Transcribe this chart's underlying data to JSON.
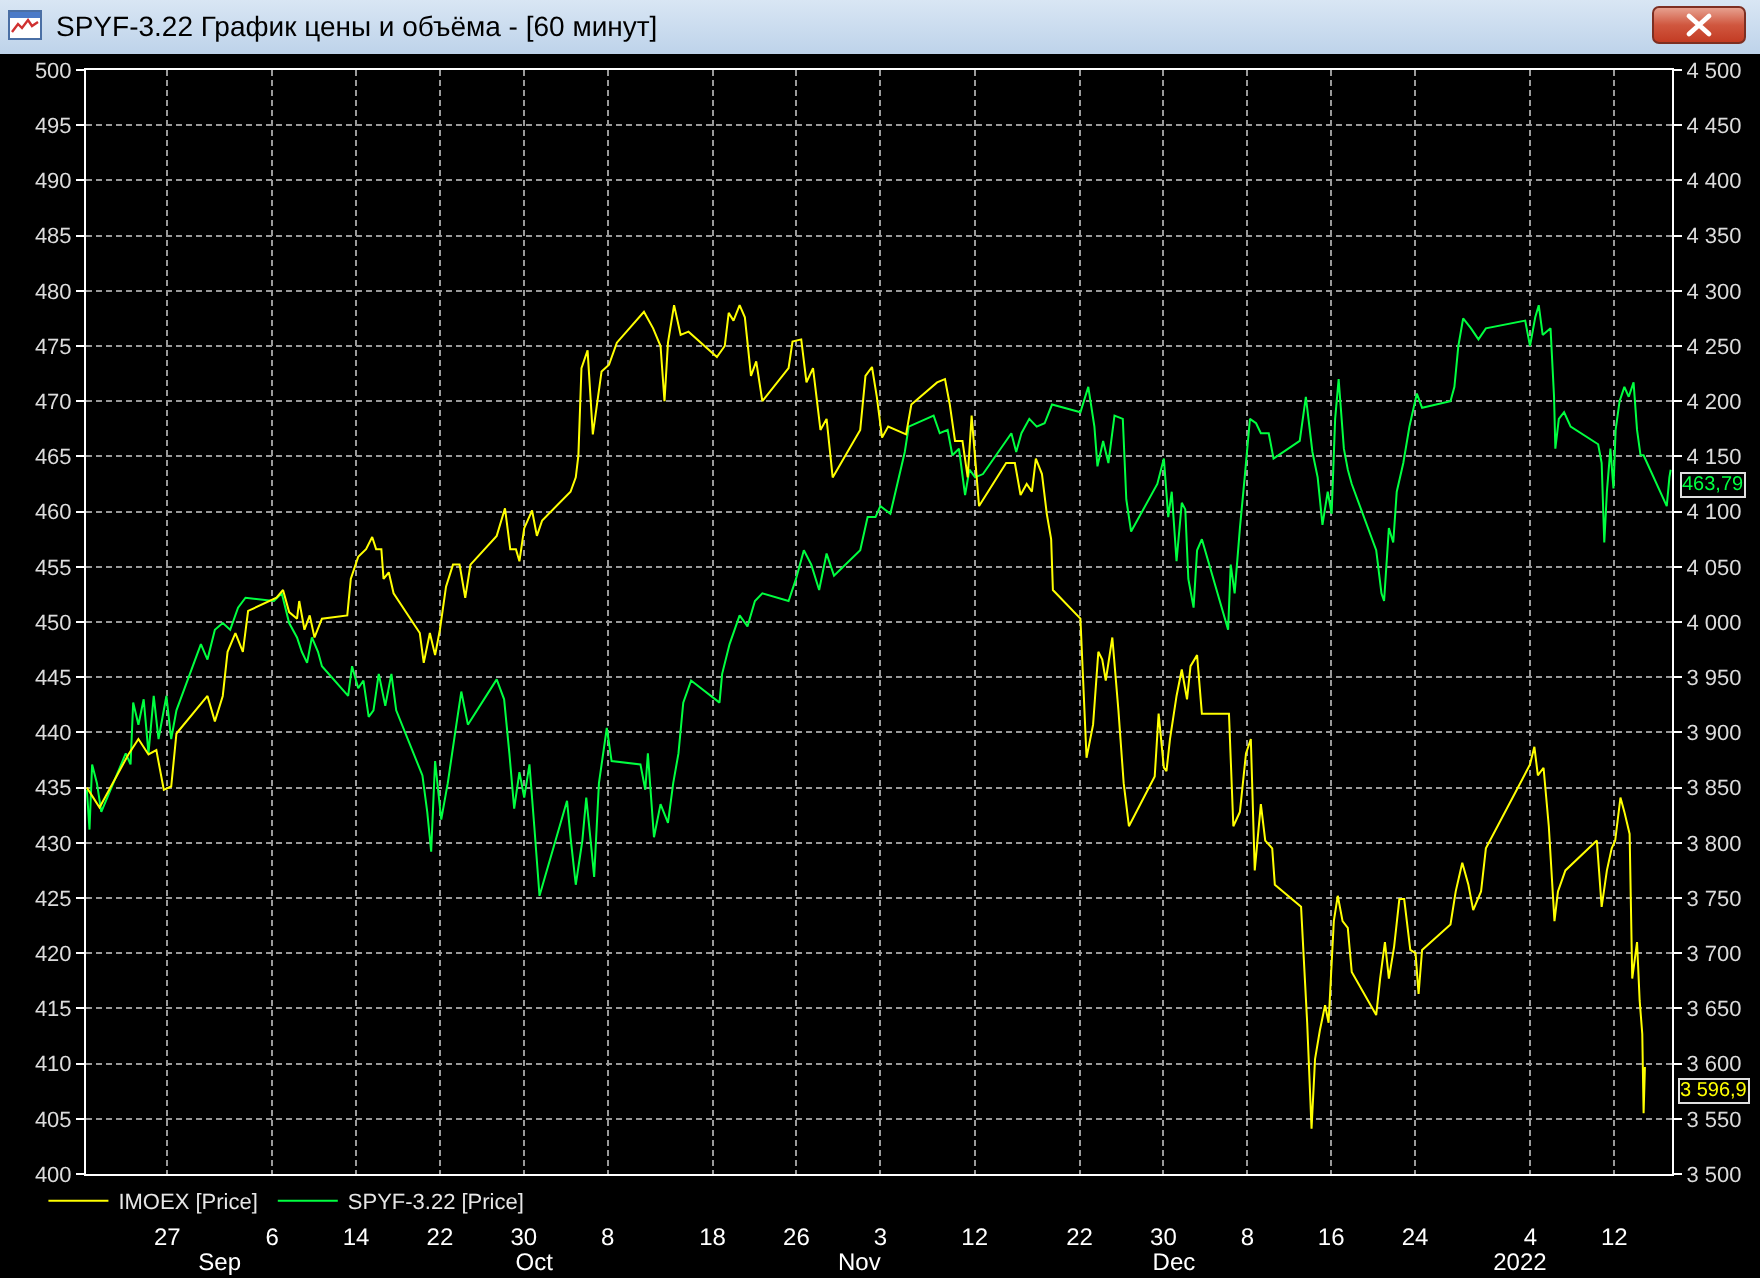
{
  "chart_data": {
    "type": "line",
    "title": "SPYF-3.22 График цены и объёма - [60 минут]",
    "series": [
      {
        "name": "IMOEX [Price]",
        "color": "#ffff00",
        "axis": "y2",
        "x": [
          "2021-08-19T08:00",
          "2021-08-20T13:00",
          "2021-08-23T07:00",
          "2021-08-24T06:00",
          "2021-08-25T05:00",
          "2021-08-25T23:00",
          "2021-08-26T16:00",
          "2021-08-27T09:00",
          "2021-08-27T21:00",
          "2021-08-30T20:00",
          "2021-08-31T13:00",
          "2021-09-01T07:00",
          "2021-09-01T18:00",
          "2021-09-02T12:00",
          "2021-09-03T05:00",
          "2021-09-03T17:00",
          "2021-09-06T10:00",
          "2021-09-07T01:00",
          "2021-09-07T15:00",
          "2021-09-08T09:00",
          "2021-09-08T14:00",
          "2021-09-09T02:00",
          "2021-09-09T14:00",
          "2021-09-10T01:00",
          "2021-09-10T18:00",
          "2021-09-13T04:00",
          "2021-09-13T12:00",
          "2021-09-14T05:00",
          "2021-09-14T23:00",
          "2021-09-15T13:00",
          "2021-09-15T22:00",
          "2021-09-16T10:00",
          "2021-09-16T15:00",
          "2021-09-17T03:00",
          "2021-09-17T14:00",
          "2021-09-20T02:00",
          "2021-09-20T11:00",
          "2021-09-21T01:00",
          "2021-09-21T13:00",
          "2021-09-22T00:00",
          "2021-09-22T14:00",
          "2021-09-23T06:00",
          "2021-09-23T21:00",
          "2021-09-24T10:00",
          "2021-09-24T22:00",
          "2021-09-27T10:00",
          "2021-09-28T05:00",
          "2021-09-28T17:00",
          "2021-09-29T06:00",
          "2021-09-29T14:00",
          "2021-09-30T01:00",
          "2021-09-30T19:00",
          "2021-10-01T06:00",
          "2021-10-01T18:00",
          "2021-10-04T11:00",
          "2021-10-04T23:00",
          "2021-10-05T05:00",
          "2021-10-05T12:00",
          "2021-10-06T02:00",
          "2021-10-06T14:00",
          "2021-10-07T10:00",
          "2021-10-08T03:00",
          "2021-10-08T21:00",
          "2021-10-11T11:00",
          "2021-10-12T08:00",
          "2021-10-13T01:00",
          "2021-10-13T10:00",
          "2021-10-13T18:00",
          "2021-10-14T08:00",
          "2021-10-14T23:00",
          "2021-10-15T17:00",
          "2021-10-18T10:00",
          "2021-10-19T04:00",
          "2021-10-19T13:00",
          "2021-10-20T00:00",
          "2021-10-20T14:00",
          "2021-10-21T02:00",
          "2021-10-21T16:00",
          "2021-10-22T04:00",
          "2021-10-22T18:00",
          "2021-10-25T06:00",
          "2021-10-25T15:00",
          "2021-10-26T11:00",
          "2021-10-26T23:00",
          "2021-10-27T14:00",
          "2021-10-28T07:00",
          "2021-10-28T21:00",
          "2021-10-29T11:00",
          "2021-11-01T02:00",
          "2021-11-01T14:00",
          "2021-11-02T05:00",
          "2021-11-02T16:00",
          "2021-11-03T04:00",
          "2021-11-03T18:00",
          "2021-11-05T11:00",
          "2021-11-05T23:00",
          "2021-11-08T10:00",
          "2021-11-09T04:00",
          "2021-11-09T15:00",
          "2021-11-10T03:00",
          "2021-11-10T20:00",
          "2021-11-11T08:00",
          "2021-11-11T17:00",
          "2021-11-12T10:00",
          "2021-11-15T00:00",
          "2021-11-15T20:00",
          "2021-11-16T09:00",
          "2021-11-16T23:00",
          "2021-11-17T11:00",
          "2021-11-17T20:00",
          "2021-11-18T10:00",
          "2021-11-18T21:00",
          "2021-11-19T07:00",
          "2021-11-19T11:00",
          "2021-11-22T02:00",
          "2021-11-22T16:00",
          "2021-11-23T07:00",
          "2021-11-23T19:00",
          "2021-11-24T04:00",
          "2021-11-24T12:00",
          "2021-11-25T03:00",
          "2021-11-25T17:00",
          "2021-11-26T05:00",
          "2021-11-26T17:00",
          "2021-11-29T04:00",
          "2021-11-29T13:00",
          "2021-11-30T01:00",
          "2021-11-30T07:00",
          "2021-11-30T15:00",
          "2021-12-01T06:00",
          "2021-12-01T18:00",
          "2021-12-02T06:00",
          "2021-12-02T14:00",
          "2021-12-03T05:00",
          "2021-12-03T16:00",
          "2021-12-06T06:00",
          "2021-12-06T16:00",
          "2021-12-07T07:00",
          "2021-12-07T21:00",
          "2021-12-08T08:00",
          "2021-12-08T17:00",
          "2021-12-09T07:00",
          "2021-12-09T17:00",
          "2021-12-10T09:00",
          "2021-12-10T15:00",
          "2021-12-13T03:00",
          "2021-12-13T17:00",
          "2021-12-14T03:00",
          "2021-12-14T11:00",
          "2021-12-14T22:00",
          "2021-12-15T10:00",
          "2021-12-15T18:00",
          "2021-12-16T06:00",
          "2021-12-16T15:00",
          "2021-12-17T02:00",
          "2021-12-17T14:00",
          "2021-12-17T23:00",
          "2021-12-20T07:00",
          "2021-12-20T16:00",
          "2021-12-21T03:00",
          "2021-12-21T12:00",
          "2021-12-22T00:00",
          "2021-12-22T12:00",
          "2021-12-22T23:00",
          "2021-12-23T13:00",
          "2021-12-24T01:00",
          "2021-12-24T08:00",
          "2021-12-24T16:00",
          "2021-12-27T09:00",
          "2021-12-27T21:00",
          "2021-12-28T12:00",
          "2021-12-29T02:00",
          "2021-12-29T13:00",
          "2021-12-30T07:00",
          "2021-12-30T18:00",
          "2022-01-03T06:00",
          "2022-01-03T23:00",
          "2022-01-04T09:00",
          "2022-01-04T17:00",
          "2022-01-05T06:00",
          "2022-01-05T18:00",
          "2022-01-06T07:00",
          "2022-01-06T15:00",
          "2022-01-07T08:00",
          "2022-01-10T08:00",
          "2022-01-10T19:00",
          "2022-01-11T07:00",
          "2022-01-11T18:00",
          "2022-01-12T02:00",
          "2022-01-12T14:00",
          "2022-01-12T23:00",
          "2022-01-13T11:00",
          "2022-01-13T17:00",
          "2022-01-14T04:00",
          "2022-01-14T10:00",
          "2022-01-14T16:00",
          "2022-01-14T19:00",
          "2022-01-14T22:00"
        ],
        "values": [
          3850,
          3832,
          3880,
          3894,
          3880,
          3884,
          3848,
          3851,
          3899,
          3933,
          3910,
          3933,
          3973,
          3990,
          3973,
          4010,
          4022,
          4029,
          4009,
          4003,
          4019,
          3993,
          4006,
          3986,
          4003,
          4006,
          4039,
          4059,
          4066,
          4077,
          4066,
          4066,
          4039,
          4045,
          4026,
          3990,
          3963,
          3990,
          3970,
          3993,
          4032,
          4052,
          4052,
          4022,
          4052,
          4078,
          4103,
          4066,
          4066,
          4055,
          4085,
          4101,
          4078,
          4092,
          4118,
          4131,
          4151,
          4230,
          4246,
          4170,
          4227,
          4233,
          4253,
          4281,
          4266,
          4250,
          4200,
          4253,
          4287,
          4260,
          4263,
          4240,
          4250,
          4280,
          4273,
          4287,
          4276,
          4223,
          4236,
          4200,
          4230,
          4254,
          4256,
          4217,
          4230,
          4174,
          4184,
          4131,
          4174,
          4223,
          4231,
          4204,
          4167,
          4177,
          4170,
          4197,
          4217,
          4220,
          4197,
          4164,
          4164,
          4131,
          4187,
          4105,
          4144,
          4144,
          4115,
          4125,
          4118,
          4148,
          4134,
          4098,
          4075,
          4029,
          4003,
          3877,
          3907,
          3973,
          3966,
          3947,
          3986,
          3920,
          3854,
          3815,
          3860,
          3917,
          3868,
          3865,
          3894,
          3933,
          3957,
          3930,
          3960,
          3970,
          3917,
          3917,
          3815,
          3828,
          3881,
          3894,
          3775,
          3835,
          3802,
          3795,
          3762,
          3742,
          3637,
          3541,
          3604,
          3630,
          3653,
          3637,
          3729,
          3752,
          3729,
          3723,
          3683,
          3644,
          3677,
          3710,
          3677,
          3706,
          3749,
          3749,
          3703,
          3700,
          3663,
          3703,
          3726,
          3756,
          3782,
          3762,
          3739,
          3756,
          3795,
          3858,
          3871,
          3887,
          3861,
          3868,
          3815,
          3729,
          3756,
          3775,
          3802,
          3742,
          3775,
          3795,
          3802,
          3841,
          3828,
          3808,
          3677,
          3710,
          3657,
          3627,
          3555,
          3596.9
        ],
        "value_labels": [
          null,
          null,
          null,
          null,
          null,
          null,
          null,
          null,
          null,
          null,
          null,
          null,
          null,
          null,
          null,
          null,
          null,
          null,
          null,
          null,
          null,
          null,
          null,
          null,
          null,
          null,
          null,
          null,
          null,
          null,
          null,
          null,
          null,
          null,
          null,
          null,
          null,
          null,
          null,
          null,
          null,
          null,
          null,
          null,
          null,
          null,
          null,
          null,
          null,
          null,
          null,
          null,
          null,
          null,
          null,
          null,
          null,
          null,
          null,
          null,
          null,
          null,
          null,
          null,
          null,
          null,
          null,
          null,
          null,
          null,
          null,
          null,
          null,
          null,
          null,
          null,
          null,
          null,
          null,
          null,
          null,
          null,
          null,
          null,
          null,
          null,
          null,
          null,
          null,
          null,
          null,
          null,
          null,
          null,
          null,
          null,
          null,
          null,
          null,
          null,
          null,
          null,
          null,
          null,
          null,
          null,
          null,
          null,
          null,
          null,
          null,
          null,
          null,
          null,
          null,
          null,
          null,
          null,
          null,
          null,
          null,
          null,
          null,
          null,
          null,
          null,
          null,
          null,
          null,
          null,
          null,
          null,
          null,
          null,
          null,
          null,
          null,
          null,
          null,
          null,
          null,
          null,
          null,
          null,
          null,
          null,
          null,
          null,
          null,
          null,
          null,
          null,
          null,
          null,
          null,
          null,
          null,
          null,
          null,
          null,
          null,
          null,
          null,
          null,
          null,
          null,
          null,
          null,
          null,
          null,
          null,
          null,
          null,
          null,
          null,
          null,
          null,
          null,
          null,
          null,
          null,
          null,
          null,
          null,
          null,
          null,
          null,
          null,
          null,
          null,
          null,
          null,
          null,
          null,
          null,
          null,
          null,
          "3 596,9"
        ]
      },
      {
        "name": "SPYF-3.22 [Price]",
        "color": "#00ff40",
        "axis": "y",
        "x": [
          "2021-08-19T08:00",
          "2021-08-19T14:00",
          "2021-08-19T20:00",
          "2021-08-20T07:00",
          "2021-08-20T17:00",
          "2021-08-23T01:00",
          "2021-08-23T12:00",
          "2021-08-23T18:00",
          "2021-08-24T06:00",
          "2021-08-24T18:00",
          "2021-08-25T05:00",
          "2021-08-25T17:00",
          "2021-08-26T04:00",
          "2021-08-26T22:00",
          "2021-08-27T09:00",
          "2021-08-27T21:00",
          "2021-08-30T05:00",
          "2021-08-30T20:00",
          "2021-08-31T13:00",
          "2021-09-01T07:00",
          "2021-09-02T00:00",
          "2021-09-02T18:00",
          "2021-09-03T11:00",
          "2021-09-06T04:00",
          "2021-09-06T22:00",
          "2021-09-07T15:00",
          "2021-09-08T09:00",
          "2021-09-08T20:00",
          "2021-09-09T08:00",
          "2021-09-09T19:00",
          "2021-09-10T09:00",
          "2021-09-10T18:00",
          "2021-09-13T06:00",
          "2021-09-13T15:00",
          "2021-09-14T05:00",
          "2021-09-14T17:00",
          "2021-09-15T05:00",
          "2021-09-15T16:00",
          "2021-09-16T04:00",
          "2021-09-16T19:00",
          "2021-09-17T09:00",
          "2021-09-17T20:00",
          "2021-09-20T08:00",
          "2021-09-20T19:00",
          "2021-09-21T04:00",
          "2021-09-21T13:00",
          "2021-09-22T03:00",
          "2021-09-22T18:00",
          "2021-09-23T11:00",
          "2021-09-24T01:00",
          "2021-09-24T16:00",
          "2021-09-27T10:00",
          "2021-09-28T03:00",
          "2021-09-28T15:00",
          "2021-09-29T02:00",
          "2021-09-29T14:00",
          "2021-09-30T01:00",
          "2021-09-30T13:00",
          "2021-10-01T00:00",
          "2021-10-01T12:00",
          "2021-10-04T03:00",
          "2021-10-04T11:00",
          "2021-10-04T23:00",
          "2021-10-05T14:00",
          "2021-10-05T23:00",
          "2021-10-06T09:00",
          "2021-10-06T17:00",
          "2021-10-07T04:00",
          "2021-10-07T22:00",
          "2021-10-08T09:00",
          "2021-10-11T03:00",
          "2021-10-11T14:00",
          "2021-10-11T20:00",
          "2021-10-12T10:00",
          "2021-10-13T01:00",
          "2021-10-13T18:00",
          "2021-10-14T06:00",
          "2021-10-14T18:00",
          "2021-10-15T05:00",
          "2021-10-15T23:00",
          "2021-10-18T16:00",
          "2021-10-18T22:00",
          "2021-10-19T15:00",
          "2021-10-20T14:00",
          "2021-10-21T08:00",
          "2021-10-22T01:00",
          "2021-10-22T18:00",
          "2021-10-25T06:00",
          "2021-10-25T23:00",
          "2021-10-26T17:00",
          "2021-10-27T10:00",
          "2021-10-28T04:00",
          "2021-10-28T21:00",
          "2021-10-29T14:00",
          "2021-11-01T02:00",
          "2021-11-01T19:00",
          "2021-11-02T13:00",
          "2021-11-03T00:00",
          "2021-11-03T23:00",
          "2021-11-05T08:00",
          "2021-11-05T17:00",
          "2021-11-08T02:00",
          "2021-11-08T16:00",
          "2021-11-09T10:00",
          "2021-11-09T21:00",
          "2021-11-10T12:00",
          "2021-11-11T02:00",
          "2021-11-11T12:00",
          "2021-11-12T01:00",
          "2021-11-12T19:00",
          "2021-11-15T12:00",
          "2021-11-15T23:00",
          "2021-11-16T11:00",
          "2021-11-17T05:00",
          "2021-11-17T22:00",
          "2021-11-18T16:00",
          "2021-11-19T09:00",
          "2021-11-22T02:00",
          "2021-11-22T20:00",
          "2021-11-23T10:00",
          "2021-11-23T17:00",
          "2021-11-24T06:00",
          "2021-11-24T18:00",
          "2021-11-25T08:00",
          "2021-11-26T03:00",
          "2021-11-26T11:00",
          "2021-11-26T22:00",
          "2021-11-29T10:00",
          "2021-11-30T01:00",
          "2021-11-30T11:00",
          "2021-11-30T19:00",
          "2021-12-01T06:00",
          "2021-12-01T18:00",
          "2021-12-02T02:00",
          "2021-12-02T09:00",
          "2021-12-02T21:00",
          "2021-12-03T05:00",
          "2021-12-03T16:00",
          "2021-12-06T04:00",
          "2021-12-06T10:00",
          "2021-12-06T19:00",
          "2021-12-07T07:00",
          "2021-12-07T18:00",
          "2021-12-08T06:00",
          "2021-12-08T20:00",
          "2021-12-09T07:00",
          "2021-12-10T01:00",
          "2021-12-10T12:00",
          "2021-12-13T00:00",
          "2021-12-13T14:00",
          "2021-12-13T20:00",
          "2021-12-14T05:00",
          "2021-12-14T17:00",
          "2021-12-15T04:00",
          "2021-12-15T16:00",
          "2021-12-16T01:00",
          "2021-12-16T09:00",
          "2021-12-16T17:00",
          "2021-12-17T05:00",
          "2021-12-17T14:00",
          "2021-12-17T23:00",
          "2021-12-20T07:00",
          "2021-12-20T19:00",
          "2021-12-21T01:00",
          "2021-12-21T12:00",
          "2021-12-21T22:00",
          "2021-12-22T06:00",
          "2021-12-22T21:00",
          "2021-12-23T11:00",
          "2021-12-24T04:00",
          "2021-12-24T16:00",
          "2021-12-27T09:00",
          "2021-12-27T18:00",
          "2021-12-28T03:00",
          "2021-12-28T14:00",
          "2021-12-29T08:00",
          "2021-12-30T01:00",
          "2021-12-30T18:00",
          "2022-01-03T12:00",
          "2022-01-03T23:00",
          "2022-01-04T11:00",
          "2022-01-04T19:00",
          "2022-01-05T04:00",
          "2022-01-05T22:00",
          "2022-01-06T06:00",
          "2022-01-06T09:00",
          "2022-01-06T17:00",
          "2022-01-07T05:00",
          "2022-01-07T20:00",
          "2022-01-10T11:00",
          "2022-01-10T19:00",
          "2022-01-11T01:00",
          "2022-01-11T07:00",
          "2022-01-11T15:00",
          "2022-01-11T22:00",
          "2022-01-12T03:00",
          "2022-01-12T12:00",
          "2022-01-12T23:00",
          "2022-01-13T09:00",
          "2022-01-13T20:00",
          "2022-01-14T04:00",
          "2022-01-14T12:00",
          "2022-01-14T19:00",
          "2022-01-17T00:00",
          "2022-01-17T06:00",
          "2022-01-17T09:00"
        ],
        "values": [
          434.8,
          431.2,
          437.1,
          435.4,
          432.8,
          438.1,
          437.1,
          442.7,
          440.7,
          443,
          438.1,
          443.3,
          439.4,
          443.3,
          439.4,
          442,
          448,
          446.6,
          449.3,
          449.9,
          449.3,
          451.3,
          452.2,
          451.9,
          452.6,
          449.9,
          448.6,
          447.3,
          446.3,
          448.6,
          447.3,
          446,
          443.3,
          446,
          444,
          444.7,
          441.4,
          442,
          445.3,
          442.4,
          445.3,
          442,
          436.1,
          432.8,
          429.2,
          437.4,
          432.1,
          435.4,
          440,
          443.7,
          440.7,
          444.8,
          443,
          438.1,
          433.1,
          436.4,
          434.1,
          437.1,
          431.5,
          425.2,
          433.8,
          430.5,
          426.2,
          430.2,
          434.1,
          430.2,
          426.9,
          435.4,
          440.4,
          437.4,
          437.1,
          434.8,
          438.1,
          430.5,
          433.5,
          431.8,
          435.4,
          438.1,
          442.7,
          444.7,
          442.7,
          445.3,
          448,
          450.6,
          449.6,
          451.9,
          452.6,
          451.9,
          453.9,
          456.5,
          455.2,
          452.9,
          456.2,
          454.2,
          456.5,
          459.5,
          459.5,
          460.5,
          459.8,
          465.4,
          467.7,
          468.7,
          467.1,
          467.4,
          465.1,
          465.7,
          461.5,
          463.8,
          463.1,
          463.4,
          467.1,
          465.4,
          467.1,
          468.4,
          467.7,
          468,
          469.7,
          469,
          471.3,
          467.7,
          464.1,
          466.4,
          464.4,
          468.7,
          468.4,
          461.1,
          458.2,
          462.5,
          464.8,
          459.5,
          461.8,
          455.5,
          460.8,
          460.2,
          453.9,
          451.3,
          456.5,
          457.5,
          449.3,
          455.2,
          452.6,
          458.5,
          463.1,
          468.4,
          468,
          467.1,
          467.1,
          464.8,
          466.4,
          470.4,
          468.4,
          465.4,
          463.1,
          458.8,
          461.8,
          459.8,
          468.4,
          472,
          465.7,
          463.8,
          462.5,
          456.5,
          452.6,
          451.9,
          458.5,
          457.2,
          461.8,
          464.4,
          467.7,
          470.7,
          469.4,
          470,
          471.3,
          475,
          477.5,
          476.6,
          475.6,
          476.6,
          477.3,
          475,
          477.6,
          478.7,
          476,
          476.6,
          470.4,
          465.7,
          468.4,
          469,
          467.7,
          466.1,
          464.4,
          457.2,
          461.8,
          465.7,
          462.1,
          467.4,
          470,
          471.3,
          470.4,
          471.7,
          467.4,
          465.1,
          465.1,
          460.5,
          463.1,
          463.79
        ],
        "value_labels": [
          null,
          null,
          null,
          null,
          null,
          null,
          null,
          null,
          null,
          null,
          null,
          null,
          null,
          null,
          null,
          null,
          null,
          null,
          null,
          null,
          null,
          null,
          null,
          null,
          null,
          null,
          null,
          null,
          null,
          null,
          null,
          null,
          null,
          null,
          null,
          null,
          null,
          null,
          null,
          null,
          null,
          null,
          null,
          null,
          null,
          null,
          null,
          null,
          null,
          null,
          null,
          null,
          null,
          null,
          null,
          null,
          null,
          null,
          null,
          null,
          null,
          null,
          null,
          null,
          null,
          null,
          null,
          null,
          null,
          null,
          null,
          null,
          null,
          null,
          null,
          null,
          null,
          null,
          null,
          null,
          null,
          null,
          null,
          null,
          null,
          null,
          null,
          null,
          null,
          null,
          null,
          null,
          null,
          null,
          null,
          null,
          null,
          null,
          null,
          null,
          null,
          null,
          null,
          null,
          null,
          null,
          null,
          null,
          null,
          null,
          null,
          null,
          null,
          null,
          null,
          null,
          null,
          null,
          null,
          null,
          null,
          null,
          null,
          null,
          null,
          null,
          null,
          null,
          null,
          null,
          null,
          null,
          null,
          null,
          null,
          null,
          null,
          null,
          null,
          null,
          null,
          null,
          null,
          null,
          null,
          null,
          null,
          null,
          null,
          null,
          null,
          null,
          null,
          null,
          null,
          null,
          null,
          null,
          null,
          null,
          null,
          null,
          null,
          null,
          null,
          null,
          null,
          null,
          null,
          null,
          null,
          null,
          null,
          null,
          null,
          null,
          null,
          null,
          null,
          null,
          null,
          null,
          null,
          null,
          null,
          null,
          null,
          null,
          null,
          null,
          null,
          null,
          null,
          null,
          null,
          null,
          null,
          null,
          null,
          null,
          null,
          null,
          null,
          null,
          null,
          "463,79"
        ]
      }
    ],
    "xlim": [
      "2021-08-19T06:00",
      "2022-01-17T12:00"
    ],
    "xticks": [
      {
        "value": "2021-08-27",
        "label": "27"
      },
      {
        "value": "2021-09-06",
        "label": "6"
      },
      {
        "value": "2021-09-14",
        "label": "14"
      },
      {
        "value": "2021-09-22",
        "label": "22"
      },
      {
        "value": "2021-09-30",
        "label": "30"
      },
      {
        "value": "2021-10-08",
        "label": "8"
      },
      {
        "value": "2021-10-18",
        "label": "18"
      },
      {
        "value": "2021-10-26",
        "label": "26"
      },
      {
        "value": "2021-11-03",
        "label": "3"
      },
      {
        "value": "2021-11-12",
        "label": "12"
      },
      {
        "value": "2021-11-22",
        "label": "22"
      },
      {
        "value": "2021-11-30",
        "label": "30"
      },
      {
        "value": "2021-12-08",
        "label": "8"
      },
      {
        "value": "2021-12-16",
        "label": "16"
      },
      {
        "value": "2021-12-24",
        "label": "24"
      },
      {
        "value": "2022-01-04",
        "label": "4"
      },
      {
        "value": "2022-01-12",
        "label": "12"
      }
    ],
    "x2lim": [
      "2021-08-19T06:00",
      "2022-01-17T12:00"
    ],
    "x2ticks": [
      {
        "value": "2021-09",
        "label": "Sep"
      },
      {
        "value": "2021-10",
        "label": "Oct"
      },
      {
        "value": "2021-11",
        "label": "Nov"
      },
      {
        "value": "2021-12",
        "label": "Dec"
      },
      {
        "value": "2022-01-03",
        "label": "2022"
      }
    ],
    "ylim": [
      400,
      500
    ],
    "yticks": [
      400,
      405,
      410,
      415,
      420,
      425,
      430,
      435,
      440,
      445,
      450,
      455,
      460,
      465,
      470,
      475,
      480,
      485,
      490,
      495,
      500
    ],
    "y2lim": [
      3500,
      4500
    ],
    "y2ticks": [
      {
        "value": 3500,
        "label": "3 500"
      },
      {
        "value": 3550,
        "label": "3 550"
      },
      {
        "value": 3600,
        "label": "3 600"
      },
      {
        "value": 3650,
        "label": "3 650"
      },
      {
        "value": 3700,
        "label": "3 700"
      },
      {
        "value": 3750,
        "label": "3 750"
      },
      {
        "value": 3800,
        "label": "3 800"
      },
      {
        "value": 3850,
        "label": "3 850"
      },
      {
        "value": 3900,
        "label": "3 900"
      },
      {
        "value": 3950,
        "label": "3 950"
      },
      {
        "value": 4000,
        "label": "4 000"
      },
      {
        "value": 4050,
        "label": "4 050"
      },
      {
        "value": 4100,
        "label": "4 100"
      },
      {
        "value": 4150,
        "label": "4 150"
      },
      {
        "value": 4200,
        "label": "4 200"
      },
      {
        "value": 4250,
        "label": "4 250"
      },
      {
        "value": 4300,
        "label": "4 300"
      },
      {
        "value": 4350,
        "label": "4 350"
      },
      {
        "value": 4400,
        "label": "4 400"
      },
      {
        "value": 4450,
        "label": "4 450"
      },
      {
        "value": 4500,
        "label": "4 500"
      }
    ],
    "grid": true,
    "legend": "bottom left",
    "line_style": "solid"
  }
}
